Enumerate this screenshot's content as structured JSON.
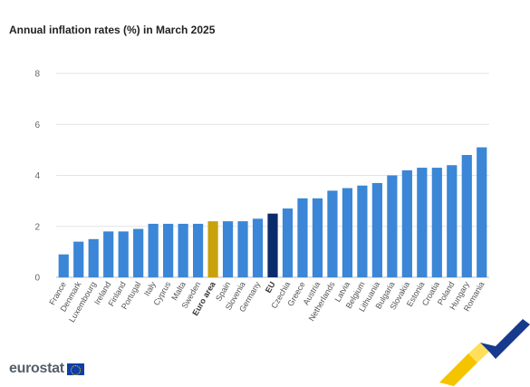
{
  "header": {
    "title": "Annual inflation rates (%) in March 2025"
  },
  "logo": {
    "text": "eurostat"
  },
  "colors": {
    "default": "#3b86d6",
    "euro_area": "#c9a20b",
    "eu": "#0b2c6b"
  },
  "chart_data": {
    "type": "bar",
    "title": "Annual inflation rates (%) in March 2025",
    "xlabel": "",
    "ylabel": "",
    "ylim": [
      0,
      8
    ],
    "yticks": [
      0,
      2,
      4,
      6,
      8
    ],
    "grid": true,
    "categories": [
      "France",
      "Denmark",
      "Luxembourg",
      "Ireland",
      "Finland",
      "Portugal",
      "Italy",
      "Cyprus",
      "Malta",
      "Sweden",
      "Euro area",
      "Spain",
      "Slovenia",
      "Germany",
      "EU",
      "Czechia",
      "Greece",
      "Austria",
      "Netherlands",
      "Latvia",
      "Belgium",
      "Lithuania",
      "Bulgaria",
      "Slovakia",
      "Estonia",
      "Croatia",
      "Poland",
      "Hungary",
      "Romania"
    ],
    "values": [
      0.9,
      1.4,
      1.5,
      1.8,
      1.8,
      1.9,
      2.1,
      2.1,
      2.1,
      2.1,
      2.2,
      2.2,
      2.2,
      2.3,
      2.5,
      2.7,
      3.1,
      3.1,
      3.4,
      3.5,
      3.6,
      3.7,
      4.0,
      4.2,
      4.3,
      4.3,
      4.4,
      4.8,
      5.1
    ],
    "highlight": {
      "Euro area": "euro_area",
      "EU": "eu"
    },
    "bold_categories": [
      "Euro area",
      "EU"
    ]
  }
}
